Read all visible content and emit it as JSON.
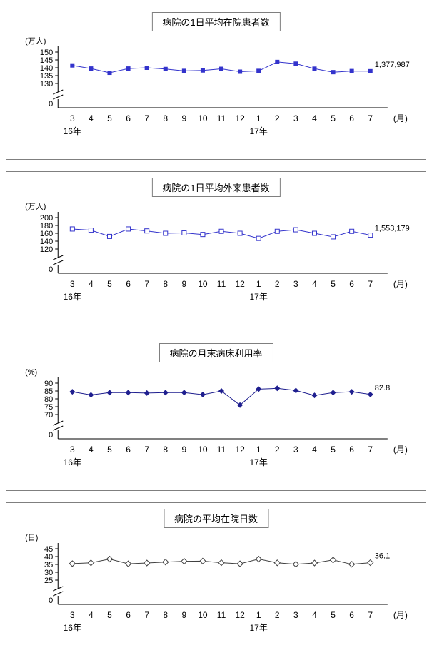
{
  "page": {
    "background": "#ffffff"
  },
  "chart_data": [
    {
      "type": "line",
      "title": "病院の1日平均在院患者数",
      "unit_label": "(万人)",
      "x_axis_label": "(月)",
      "zero_label": "0",
      "categories": [
        "3",
        "4",
        "5",
        "6",
        "7",
        "8",
        "9",
        "10",
        "11",
        "12",
        "1",
        "2",
        "3",
        "4",
        "5",
        "6",
        "7"
      ],
      "year_labels": [
        {
          "label": "16年",
          "index": 0
        },
        {
          "label": "17年",
          "index": 10
        }
      ],
      "yticks": [
        150,
        145,
        140,
        135,
        130
      ],
      "y_axis_break_to_zero": true,
      "values": [
        141.5,
        139.5,
        136.8,
        139.5,
        140.0,
        139.2,
        138.0,
        138.3,
        139.3,
        137.5,
        138.0,
        143.7,
        142.6,
        139.4,
        137.2,
        137.9,
        137.8
      ],
      "last_value_label": "1,377,987",
      "marker": "square-filled",
      "color": "#3333cc"
    },
    {
      "type": "line",
      "title": "病院の1日平均外来患者数",
      "unit_label": "(万人)",
      "x_axis_label": "(月)",
      "zero_label": "0",
      "categories": [
        "3",
        "4",
        "5",
        "6",
        "7",
        "8",
        "9",
        "10",
        "11",
        "12",
        "1",
        "2",
        "3",
        "4",
        "5",
        "6",
        "7"
      ],
      "year_labels": [
        {
          "label": "16年",
          "index": 0
        },
        {
          "label": "17年",
          "index": 10
        }
      ],
      "yticks": [
        200,
        180,
        160,
        140,
        120
      ],
      "y_axis_break_to_zero": true,
      "values": [
        171,
        168,
        152,
        171,
        166,
        160,
        161,
        157,
        165,
        160,
        147,
        165,
        169,
        160,
        151,
        165,
        155.3
      ],
      "last_value_label": "1,553,179",
      "marker": "square-open",
      "color": "#3333cc"
    },
    {
      "type": "line",
      "title": "病院の月末病床利用率",
      "unit_label": "(%)",
      "x_axis_label": "(月)",
      "zero_label": "0",
      "categories": [
        "3",
        "4",
        "5",
        "6",
        "7",
        "8",
        "9",
        "10",
        "11",
        "12",
        "1",
        "2",
        "3",
        "4",
        "5",
        "6",
        "7"
      ],
      "year_labels": [
        {
          "label": "16年",
          "index": 0
        },
        {
          "label": "17年",
          "index": 10
        }
      ],
      "yticks": [
        90,
        85,
        80,
        75,
        70
      ],
      "y_axis_break_to_zero": true,
      "values": [
        84.5,
        82.5,
        84.0,
        84.0,
        83.7,
        84.0,
        84.0,
        82.7,
        85.0,
        76.0,
        86.2,
        86.7,
        85.3,
        82.2,
        84.0,
        84.5,
        82.8
      ],
      "last_value_label": "82.8",
      "marker": "diamond-filled",
      "color": "#1f1f8f"
    },
    {
      "type": "line",
      "title": "病院の平均在院日数",
      "unit_label": "(日)",
      "x_axis_label": "(月)",
      "zero_label": "0",
      "categories": [
        "3",
        "4",
        "5",
        "6",
        "7",
        "8",
        "9",
        "10",
        "11",
        "12",
        "1",
        "2",
        "3",
        "4",
        "5",
        "6",
        "7"
      ],
      "year_labels": [
        {
          "label": "16年",
          "index": 0
        },
        {
          "label": "17年",
          "index": 10
        }
      ],
      "yticks": [
        45,
        40,
        35,
        30,
        25
      ],
      "y_axis_break_to_zero": true,
      "values": [
        35.5,
        36.0,
        38.4,
        35.4,
        35.9,
        36.5,
        37.0,
        37.1,
        36.1,
        35.4,
        38.4,
        36.0,
        35.1,
        35.9,
        37.8,
        35.1,
        36.1
      ],
      "last_value_label": "36.1",
      "marker": "diamond-open",
      "color": "#404040"
    }
  ]
}
